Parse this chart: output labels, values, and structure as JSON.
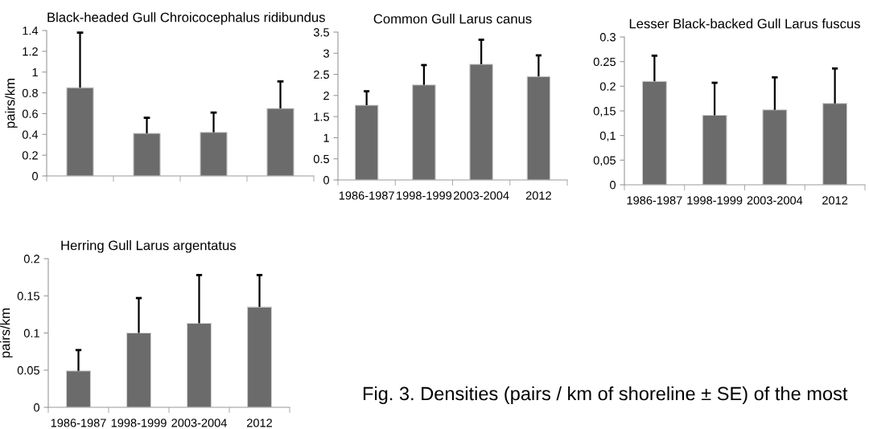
{
  "chart_data": [
    {
      "type": "bar",
      "title": "Black-headed Gull Chroicocephalus ridibundus",
      "ylabel": "pairs/km",
      "categories": [
        null,
        null,
        null,
        null
      ],
      "values": [
        0.85,
        0.41,
        0.42,
        0.65
      ],
      "errors": [
        [
          0.85,
          1.38
        ],
        [
          0.41,
          0.56
        ],
        [
          0.42,
          0.61
        ],
        [
          0.65,
          0.91
        ]
      ],
      "color": "#6b6b6b",
      "ylim": [
        0,
        1.4
      ],
      "yticks": [
        0,
        0.2,
        0.4,
        0.6,
        0.8,
        1,
        1.2,
        1.4
      ],
      "grid": false
    },
    {
      "type": "bar",
      "title": "Common Gull Larus canus",
      "categories": [
        "1986-1987",
        "1998-1999",
        "2003-2004",
        "2012"
      ],
      "values": [
        1.77,
        2.25,
        2.74,
        2.45
      ],
      "errors": [
        [
          1.77,
          2.1
        ],
        [
          2.25,
          2.72
        ],
        [
          2.74,
          3.32
        ],
        [
          2.45,
          2.95
        ]
      ],
      "color": "#6b6b6b",
      "ylim": [
        0,
        3.5
      ],
      "yticks": [
        0,
        0.5,
        1,
        1.5,
        2,
        2.5,
        3,
        3.5
      ],
      "grid": false
    },
    {
      "type": "bar",
      "title": "Lesser Black-backed Gull Larus fuscus",
      "categories": [
        "1986-1987",
        "1998-1999",
        "2003-2004",
        "2012"
      ],
      "values": [
        0.21,
        0.141,
        0.152,
        0.165
      ],
      "errors": [
        [
          0.21,
          0.262
        ],
        [
          0.141,
          0.207
        ],
        [
          0.152,
          0.218
        ],
        [
          0.165,
          0.236
        ]
      ],
      "color": "#6b6b6b",
      "ylim": [
        0,
        0.3
      ],
      "yticks": [
        0,
        {
          "value": 0.05,
          "label": "0,05"
        },
        {
          "value": 0.1,
          "label": "0,1"
        },
        {
          "value": 0.15,
          "label": "0,15"
        },
        0.2,
        0.25,
        0.3
      ],
      "grid": false
    },
    {
      "type": "bar",
      "title": "Herring Gull Larus argentatus",
      "ylabel": "pairs/km",
      "categories": [
        "1986-1987",
        "1998-1999",
        "2003-2004",
        "2012"
      ],
      "values": [
        0.049,
        0.1,
        0.113,
        0.135
      ],
      "errors": [
        [
          0.049,
          0.077
        ],
        [
          0.1,
          0.147
        ],
        [
          0.113,
          0.178
        ],
        [
          0.135,
          0.178
        ]
      ],
      "color": "#6b6b6b",
      "ylim": [
        0,
        0.2
      ],
      "yticks": [
        0,
        0.05,
        0.1,
        0.15,
        0.2
      ],
      "grid": false,
      "annotations": [
        "Fig. 3. Densities (pairs / km of shoreline ± SE) of the most"
      ]
    }
  ]
}
